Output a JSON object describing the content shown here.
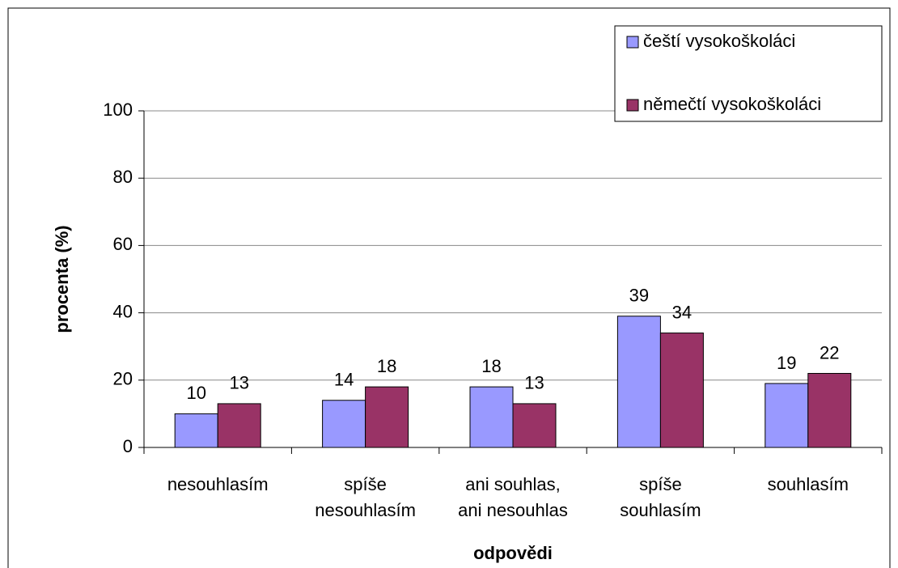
{
  "chart_data": {
    "type": "bar",
    "x_label": "odpovědi",
    "y_label": "procenta (%)",
    "categories": [
      "nesouhlasím",
      "spíše\nnesouhlasím",
      "ani souhlas,\nani nesouhlas",
      "spíše\nsouhlasím",
      "souhlasím"
    ],
    "series": [
      {
        "name": "čeští vysokoškoláci",
        "color": "#9999ff",
        "values": [
          10,
          14,
          18,
          39,
          19
        ]
      },
      {
        "name": "němečtí vysokoškoláci",
        "color": "#993366",
        "values": [
          13,
          18,
          13,
          34,
          22
        ]
      }
    ],
    "ylim": [
      0,
      100
    ],
    "yticks": [
      0,
      20,
      40,
      60,
      80,
      100
    ],
    "grid": true,
    "legend": "top-right"
  }
}
